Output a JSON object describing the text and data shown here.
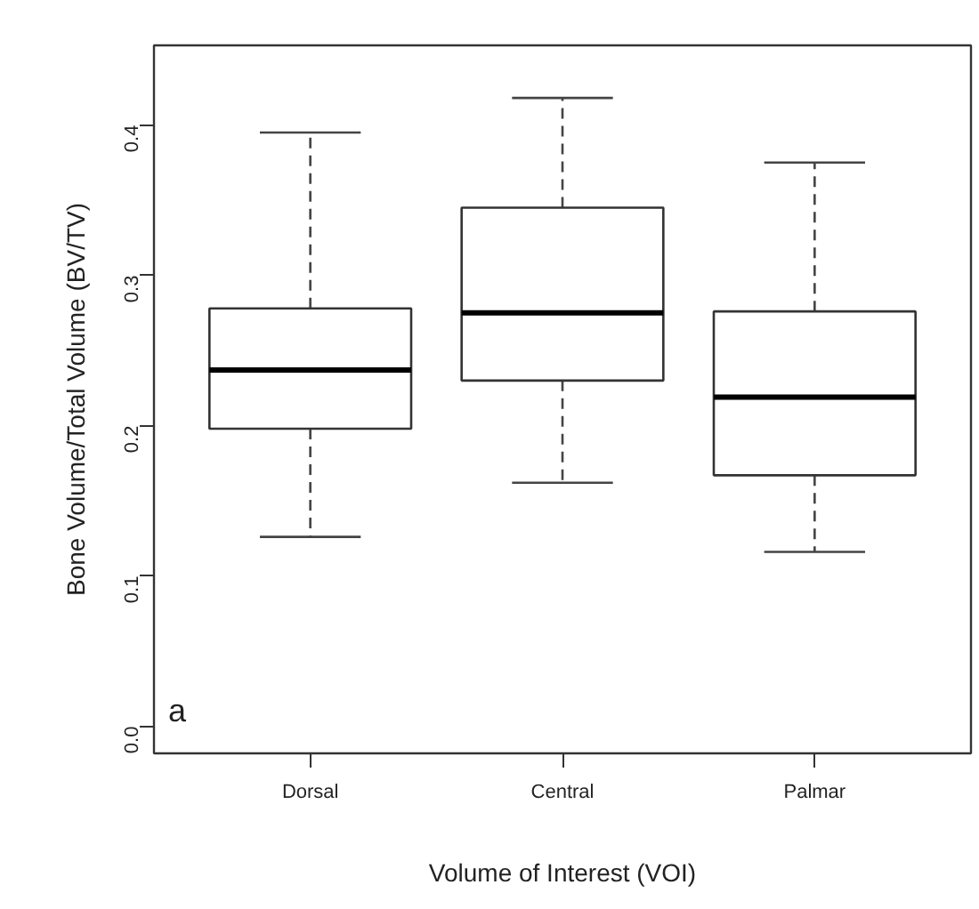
{
  "chart_data": {
    "type": "box",
    "categories": [
      "Dorsal",
      "Central",
      "Palmar"
    ],
    "boxes": [
      {
        "low": 0.126,
        "q1": 0.198,
        "median": 0.237,
        "q3": 0.278,
        "high": 0.395
      },
      {
        "low": 0.162,
        "q1": 0.23,
        "median": 0.275,
        "q3": 0.345,
        "high": 0.418
      },
      {
        "low": 0.116,
        "q1": 0.167,
        "median": 0.219,
        "q3": 0.276,
        "high": 0.375
      }
    ],
    "ylim": [
      -0.018,
      0.453
    ],
    "yticks": [
      {
        "value": 0,
        "label": "0.0"
      },
      0.1,
      0.2,
      0.3,
      0.4
    ],
    "xlabel": "Volume of Interest (VOI)",
    "ylabel": "Bone Volume/Total Volume (BV/TV)",
    "annotations": [
      "a"
    ],
    "grid": false
  }
}
